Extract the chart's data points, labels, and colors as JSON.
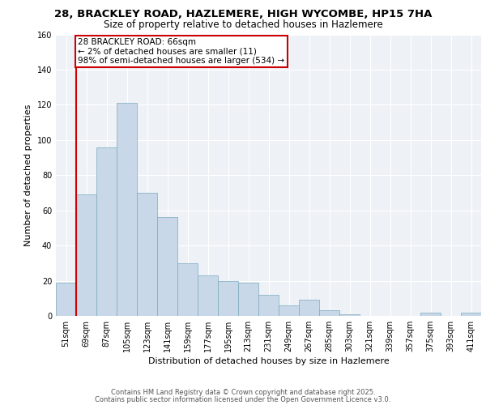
{
  "title_line1": "28, BRACKLEY ROAD, HAZLEMERE, HIGH WYCOMBE, HP15 7HA",
  "title_line2": "Size of property relative to detached houses in Hazlemere",
  "xlabel": "Distribution of detached houses by size in Hazlemere",
  "ylabel": "Number of detached properties",
  "categories": [
    "51sqm",
    "69sqm",
    "87sqm",
    "105sqm",
    "123sqm",
    "141sqm",
    "159sqm",
    "177sqm",
    "195sqm",
    "213sqm",
    "231sqm",
    "249sqm",
    "267sqm",
    "285sqm",
    "303sqm",
    "321sqm",
    "339sqm",
    "357sqm",
    "375sqm",
    "393sqm",
    "411sqm"
  ],
  "values": [
    19,
    69,
    96,
    121,
    70,
    56,
    30,
    23,
    20,
    19,
    12,
    6,
    9,
    3,
    1,
    0,
    0,
    0,
    2,
    0,
    2
  ],
  "bar_color": "#c8d8e8",
  "bar_edge_color": "#7aaabb",
  "ylim": [
    0,
    160
  ],
  "yticks": [
    0,
    20,
    40,
    60,
    80,
    100,
    120,
    140,
    160
  ],
  "annotation_text": "28 BRACKLEY ROAD: 66sqm\n← 2% of detached houses are smaller (11)\n98% of semi-detached houses are larger (534) →",
  "annotation_box_color": "#ffffff",
  "annotation_box_edge_color": "#cc0000",
  "red_line_color": "#cc0000",
  "footer_line1": "Contains HM Land Registry data © Crown copyright and database right 2025.",
  "footer_line2": "Contains public sector information licensed under the Open Government Licence v3.0.",
  "background_color": "#eef2f7",
  "grid_color": "#ffffff",
  "title_fontsize": 9.5,
  "subtitle_fontsize": 8.5,
  "axis_label_fontsize": 8,
  "tick_fontsize": 7,
  "annotation_fontsize": 7.5,
  "footer_fontsize": 6
}
